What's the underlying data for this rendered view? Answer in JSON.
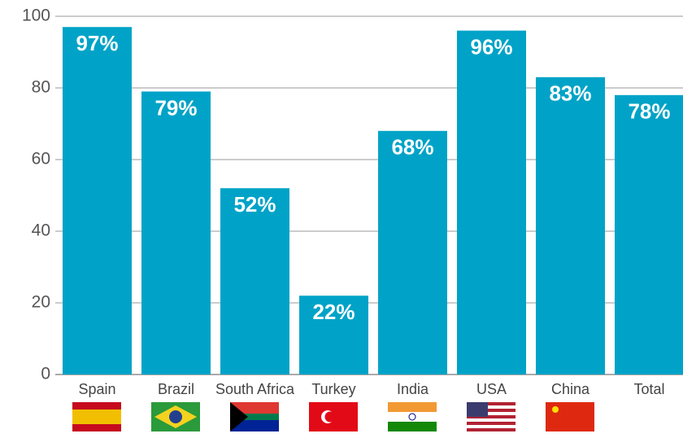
{
  "chart_data": {
    "type": "bar",
    "categories": [
      "Spain",
      "Brazil",
      "South Africa",
      "Turkey",
      "India",
      "USA",
      "China",
      "Total"
    ],
    "values": [
      97,
      79,
      52,
      22,
      68,
      96,
      83,
      78
    ],
    "value_labels": [
      "97%",
      "79%",
      "52%",
      "22%",
      "68%",
      "96%",
      "83%",
      "78%"
    ],
    "color": "#00a3c7",
    "ylim": [
      0,
      100
    ],
    "yticks": [
      0,
      20,
      40,
      60,
      80,
      100
    ],
    "grid": true
  }
}
